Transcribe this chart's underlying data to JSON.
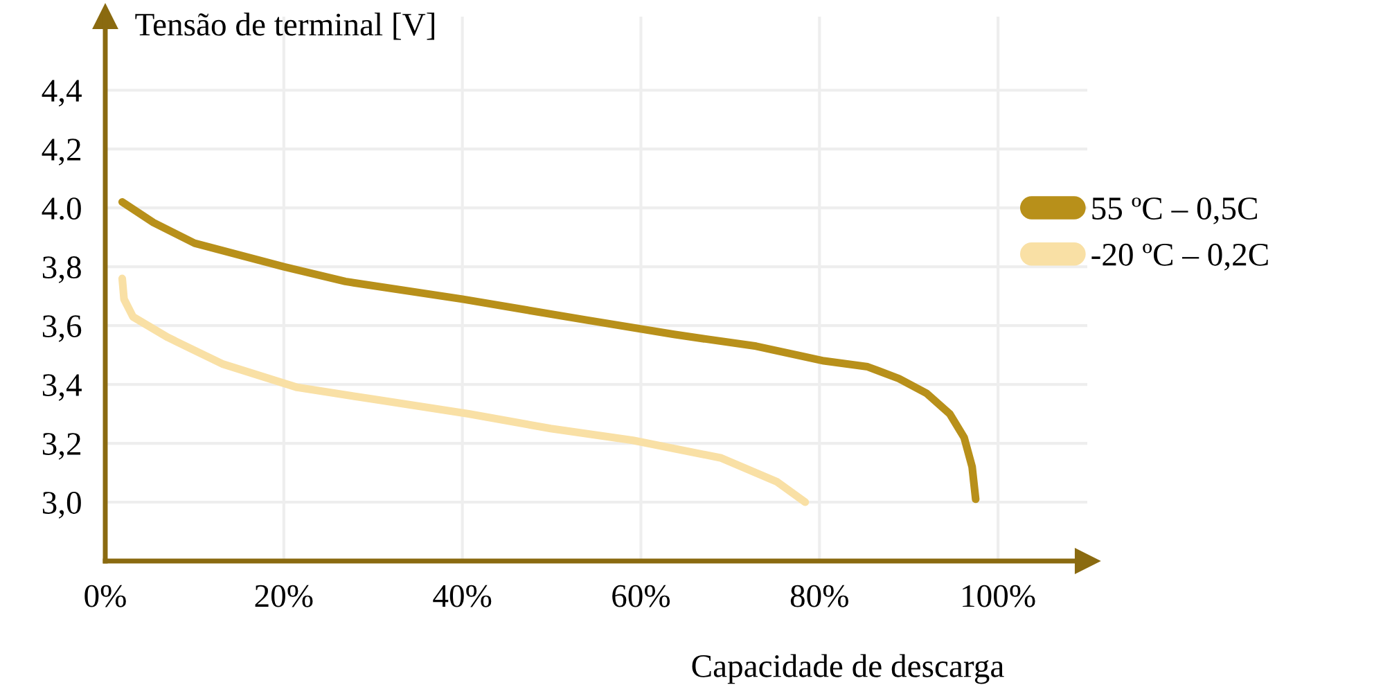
{
  "chart_data": {
    "type": "line",
    "ylabel": "Tensão de terminal [V]",
    "xlabel": "Capacidade de descarga",
    "xlim": [
      0,
      110
    ],
    "ylim": [
      2.8,
      4.65
    ],
    "xticks": [
      {
        "value": 0,
        "label": "0%"
      },
      {
        "value": 20,
        "label": "20%"
      },
      {
        "value": 40,
        "label": "40%"
      },
      {
        "value": 60,
        "label": "60%"
      },
      {
        "value": 80,
        "label": "80%"
      },
      {
        "value": 100,
        "label": "100%"
      }
    ],
    "yticks": [
      {
        "value": 3.0,
        "label": "3,0"
      },
      {
        "value": 3.2,
        "label": "3,2"
      },
      {
        "value": 3.4,
        "label": "3,4"
      },
      {
        "value": 3.6,
        "label": "3,6"
      },
      {
        "value": 3.8,
        "label": "3,8"
      },
      {
        "value": 4.0,
        "label": "4.0"
      },
      {
        "value": 4.2,
        "label": "4,2"
      },
      {
        "value": 4.4,
        "label": "4,4"
      }
    ],
    "grid": true,
    "legend": "right",
    "line_style": "solid",
    "marker": "none",
    "series": [
      {
        "name": "55 ºC – 0,5C",
        "color": "#b8901a",
        "x": [
          1.9,
          5.4,
          10.0,
          20,
          26.9,
          40,
          53.7,
          63.7,
          72.9,
          80.5,
          85.4,
          88.9,
          92.0,
          94.6,
          96.2,
          97.1,
          97.5
        ],
        "values": [
          4.02,
          3.95,
          3.88,
          3.8,
          3.75,
          3.69,
          3.62,
          3.57,
          3.53,
          3.48,
          3.46,
          3.42,
          3.37,
          3.3,
          3.22,
          3.12,
          3.01
        ]
      },
      {
        "name": "-20 ºC – 0,2C",
        "color": "#f9e0a5",
        "x": [
          1.9,
          2.1,
          3.1,
          7.0,
          13.1,
          21.5,
          30,
          40.7,
          49.9,
          59.1,
          69.0,
          75.2,
          78.4
        ],
        "values": [
          3.76,
          3.69,
          3.63,
          3.56,
          3.47,
          3.39,
          3.35,
          3.3,
          3.25,
          3.21,
          3.15,
          3.07,
          3.0
        ]
      }
    ]
  }
}
